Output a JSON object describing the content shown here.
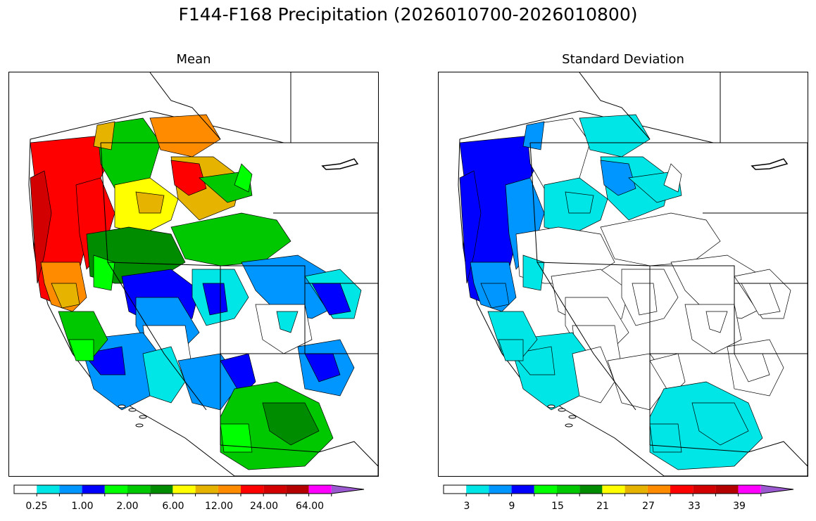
{
  "title": "F144-F168 Precipitation (2026010700-2026010800)",
  "panels": {
    "mean": {
      "title": "Mean"
    },
    "std": {
      "title": "Standard Deviation"
    }
  },
  "colors": {
    "levels": [
      "#ffffff",
      "#00e5e5",
      "#0096ff",
      "#0000ff",
      "#00ff00",
      "#00c800",
      "#008c00",
      "#ffff00",
      "#e6b400",
      "#ff8c00",
      "#ff0000",
      "#d20000",
      "#b40000",
      "#ff00ff",
      "#9b59d0"
    ]
  },
  "colorbar_mean": {
    "tick_labels": [
      "0.25",
      "1.00",
      "2.00",
      "6.00",
      "12.00",
      "24.00",
      "64.00"
    ]
  },
  "colorbar_std": {
    "tick_labels": [
      "3",
      "9",
      "15",
      "21",
      "27",
      "33",
      "39"
    ]
  }
}
